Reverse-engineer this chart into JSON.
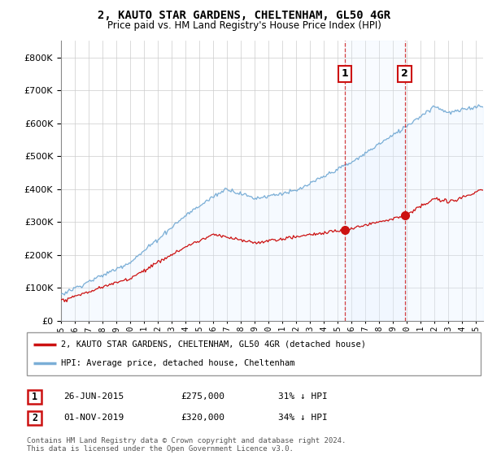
{
  "title": "2, KAUTO STAR GARDENS, CHELTENHAM, GL50 4GR",
  "subtitle": "Price paid vs. HM Land Registry's House Price Index (HPI)",
  "ylim": [
    0,
    850000
  ],
  "yticks": [
    0,
    100000,
    200000,
    300000,
    400000,
    500000,
    600000,
    700000,
    800000
  ],
  "hpi_color": "#7aaed6",
  "hpi_fill_color": "#ddeeff",
  "price_color": "#cc1111",
  "sale1_date": 2015.49,
  "sale1_price": 275000,
  "sale2_date": 2019.83,
  "sale2_price": 320000,
  "legend_property": "2, KAUTO STAR GARDENS, CHELTENHAM, GL50 4GR (detached house)",
  "legend_hpi": "HPI: Average price, detached house, Cheltenham",
  "table_row1": [
    "1",
    "26-JUN-2015",
    "£275,000",
    "31% ↓ HPI"
  ],
  "table_row2": [
    "2",
    "01-NOV-2019",
    "£320,000",
    "34% ↓ HPI"
  ],
  "footnote": "Contains HM Land Registry data © Crown copyright and database right 2024.\nThis data is licensed under the Open Government Licence v3.0.",
  "xmin": 1995,
  "xmax": 2025.5,
  "xticks": [
    1995,
    1996,
    1997,
    1998,
    1999,
    2000,
    2001,
    2002,
    2003,
    2004,
    2005,
    2006,
    2007,
    2008,
    2009,
    2010,
    2011,
    2012,
    2013,
    2014,
    2015,
    2016,
    2017,
    2018,
    2019,
    2020,
    2021,
    2022,
    2023,
    2024,
    2025
  ],
  "background_color": "#ffffff",
  "plot_bg_color": "#ffffff",
  "grid_color": "#cccccc"
}
